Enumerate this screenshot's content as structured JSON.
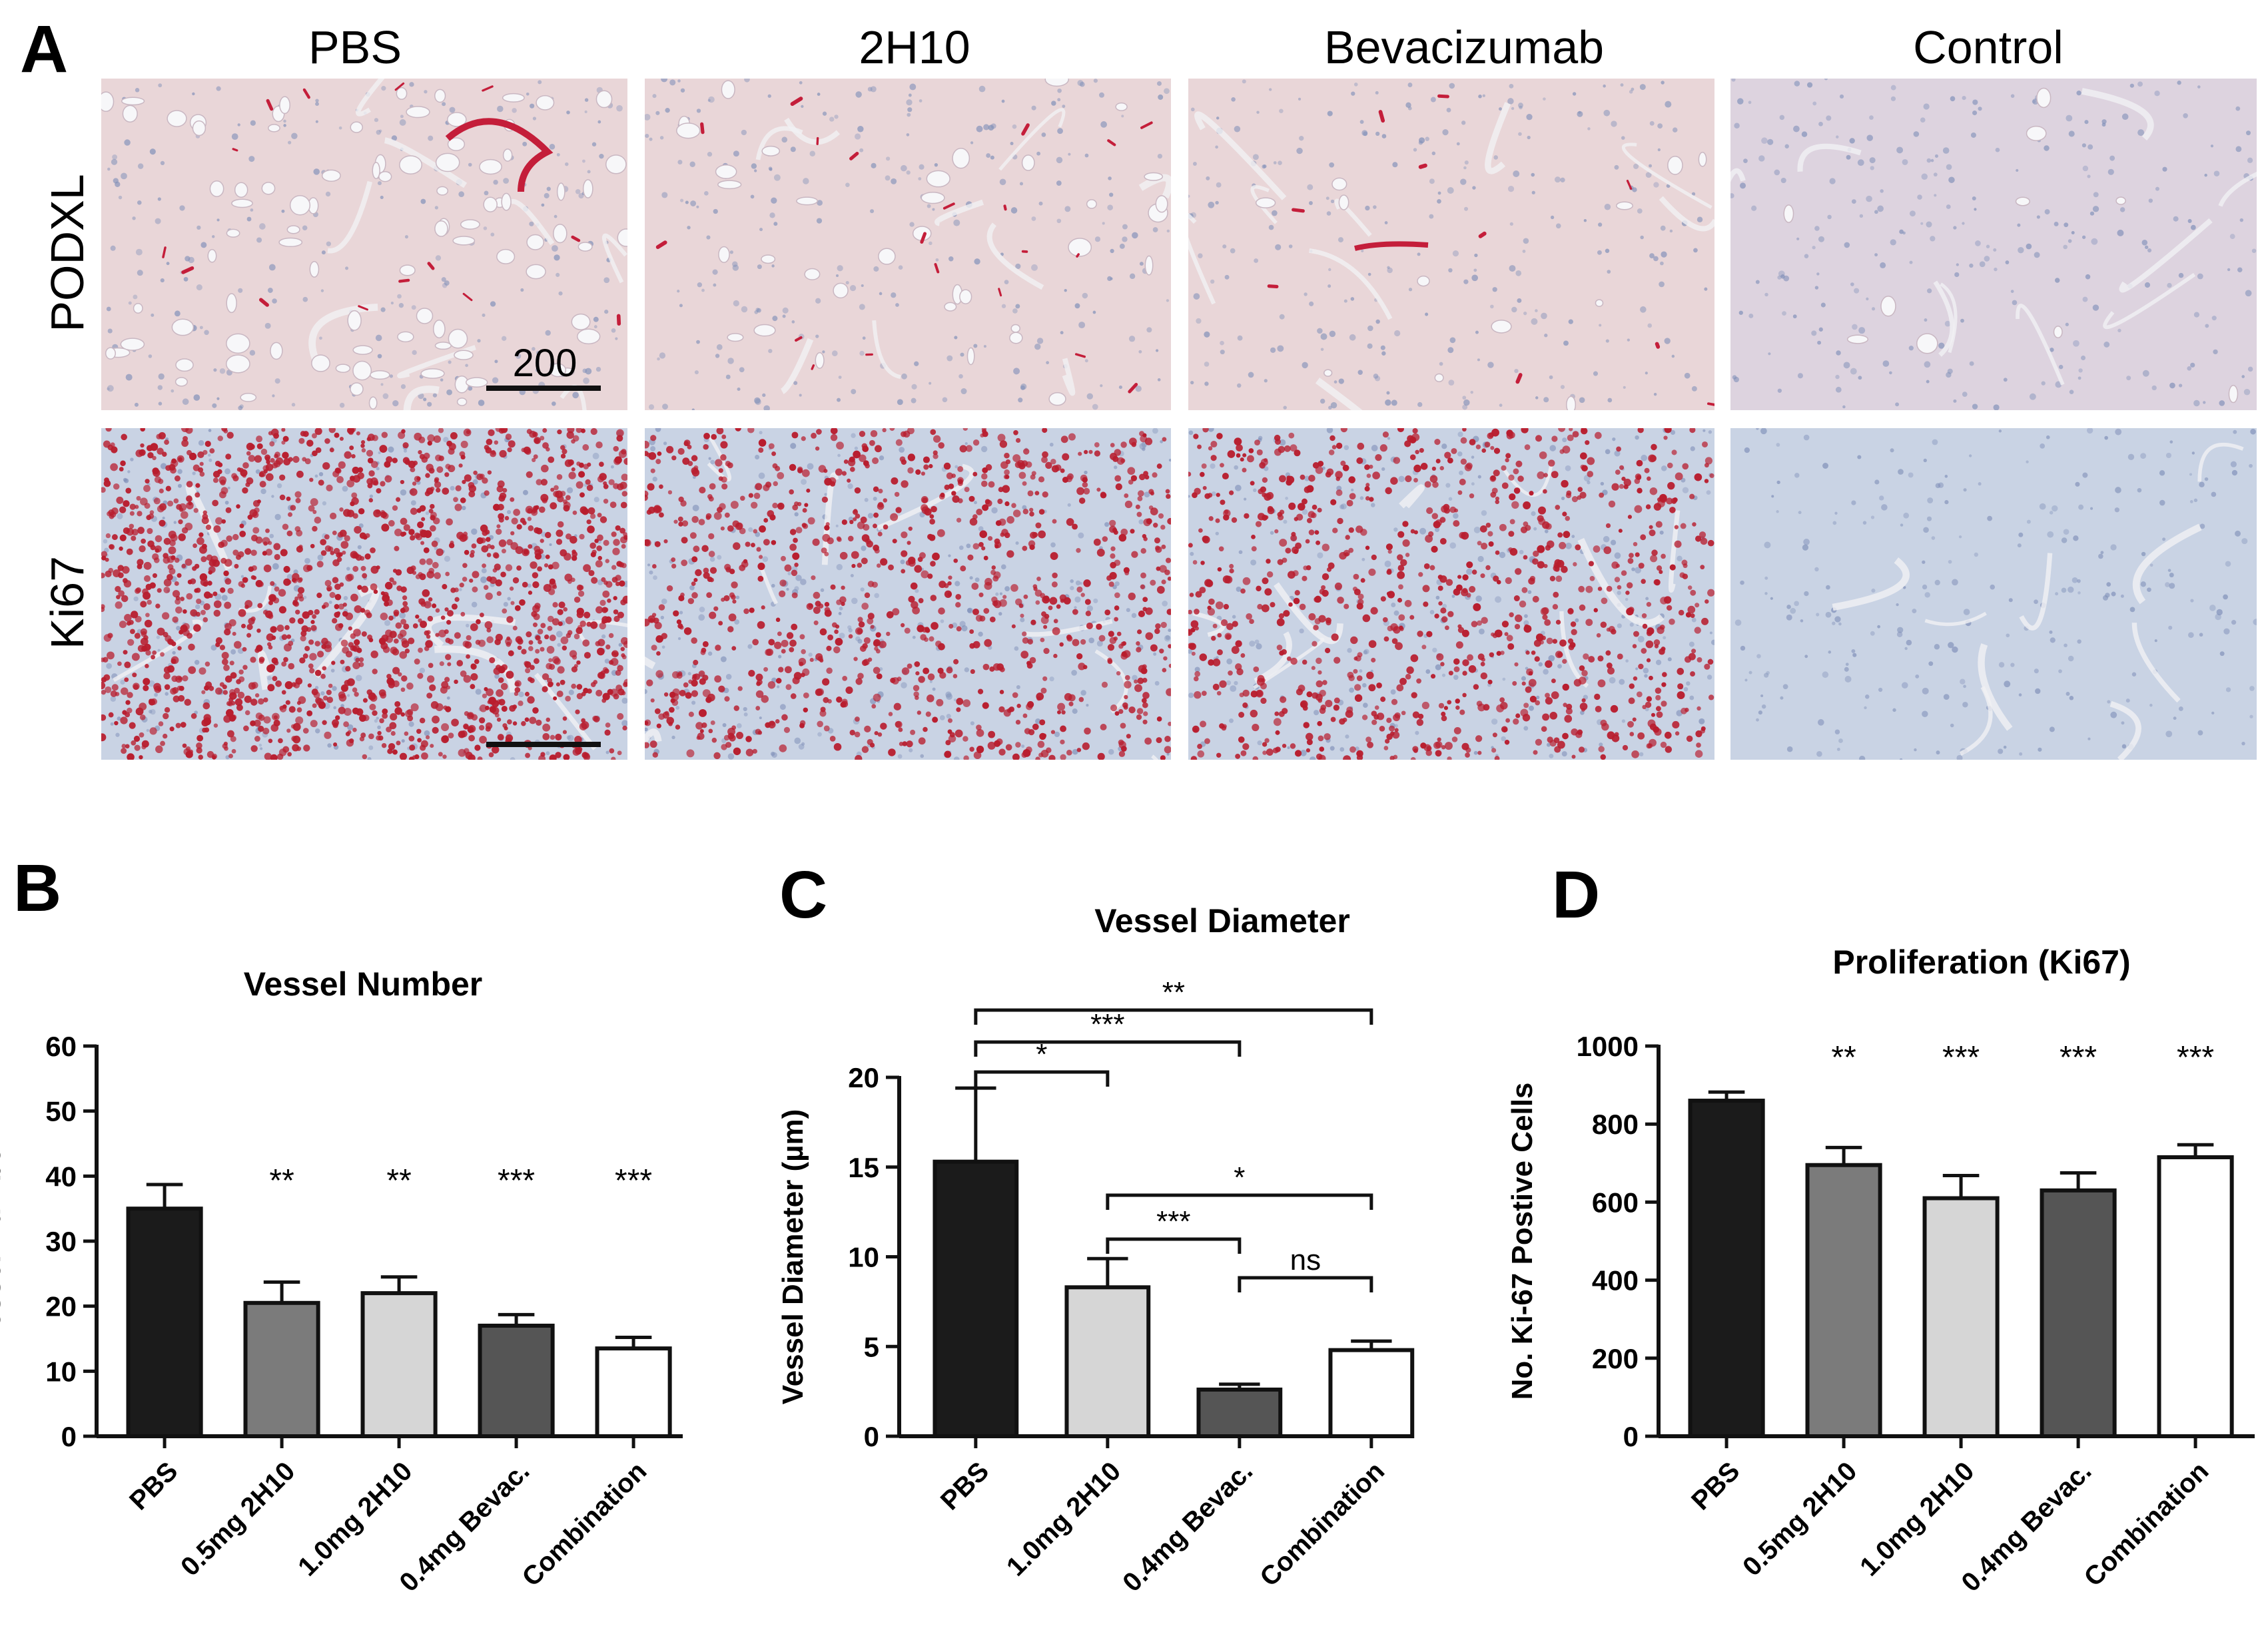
{
  "panel_a": {
    "letter": "A",
    "columns": [
      "PBS",
      "2H10",
      "Bevacizumab",
      "Control"
    ],
    "rows": [
      "PODXL",
      "Ki67"
    ],
    "scale_bar_label": "200",
    "stain_colors": {
      "tissue_pink": "#e9d6d8",
      "tissue_blue": "#c9d3e4",
      "vessel_red": "#c41e3a",
      "nucleus_red": "#b81d2e",
      "hematoxylin": "#7f8fb8"
    }
  },
  "chart_data": [
    {
      "panel": "B",
      "type": "bar",
      "title": "Vessel Number",
      "xlabel": "",
      "ylabel": "Vessel Number",
      "ylim": [
        0,
        60
      ],
      "yticks": [
        0,
        10,
        20,
        30,
        40,
        50,
        60
      ],
      "categories": [
        "PBS",
        "0.5mg 2H10",
        "1.0mg 2H10",
        "0.4mg Bevac.",
        "Combination"
      ],
      "values": [
        35,
        20.5,
        22,
        17,
        13.5
      ],
      "errors": [
        3.7,
        3.2,
        2.5,
        1.7,
        1.7
      ],
      "significance": [
        "",
        "**",
        "**",
        "***",
        "***"
      ],
      "bar_colors": [
        "#1b1b1b",
        "#7b7b7b",
        "#d6d6d6",
        "#555555",
        "#ffffff"
      ],
      "brackets": []
    },
    {
      "panel": "C",
      "type": "bar",
      "title": "Vessel Diameter",
      "xlabel": "",
      "ylabel": "Vessel Diameter (µm)",
      "ylim": [
        0,
        20
      ],
      "yticks": [
        0,
        5,
        10,
        15,
        20
      ],
      "categories": [
        "PBS",
        "1.0mg 2H10",
        "0.4mg Bevac.",
        "Combination"
      ],
      "values": [
        15.3,
        8.3,
        2.6,
        4.8
      ],
      "errors": [
        4.1,
        1.6,
        0.3,
        0.5
      ],
      "significance": [
        "",
        "",
        "",
        ""
      ],
      "bar_colors": [
        "#1b1b1b",
        "#d6d6d6",
        "#555555",
        "#ffffff"
      ],
      "brackets": [
        {
          "from": 0,
          "to": 3,
          "label": "**"
        },
        {
          "from": 0,
          "to": 2,
          "label": "***"
        },
        {
          "from": 0,
          "to": 1,
          "label": "*"
        },
        {
          "from": 1,
          "to": 3,
          "label": "*"
        },
        {
          "from": 1,
          "to": 2,
          "label": "***"
        },
        {
          "from": 2,
          "to": 3,
          "label": "ns"
        }
      ]
    },
    {
      "panel": "D",
      "type": "bar",
      "title": "Proliferation (Ki67)",
      "xlabel": "",
      "ylabel": "No. Ki-67 Postive Cells",
      "ylim": [
        0,
        1000
      ],
      "yticks": [
        0,
        200,
        400,
        600,
        800,
        1000
      ],
      "categories": [
        "PBS",
        "0.5mg 2H10",
        "1.0mg 2H10",
        "0.4mg Bevac.",
        "Combination"
      ],
      "values": [
        860,
        695,
        610,
        630,
        715
      ],
      "errors": [
        22,
        45,
        58,
        45,
        32
      ],
      "significance": [
        "",
        "**",
        "***",
        "***",
        "***"
      ],
      "bar_colors": [
        "#1b1b1b",
        "#7b7b7b",
        "#d6d6d6",
        "#555555",
        "#ffffff"
      ],
      "brackets": []
    }
  ]
}
